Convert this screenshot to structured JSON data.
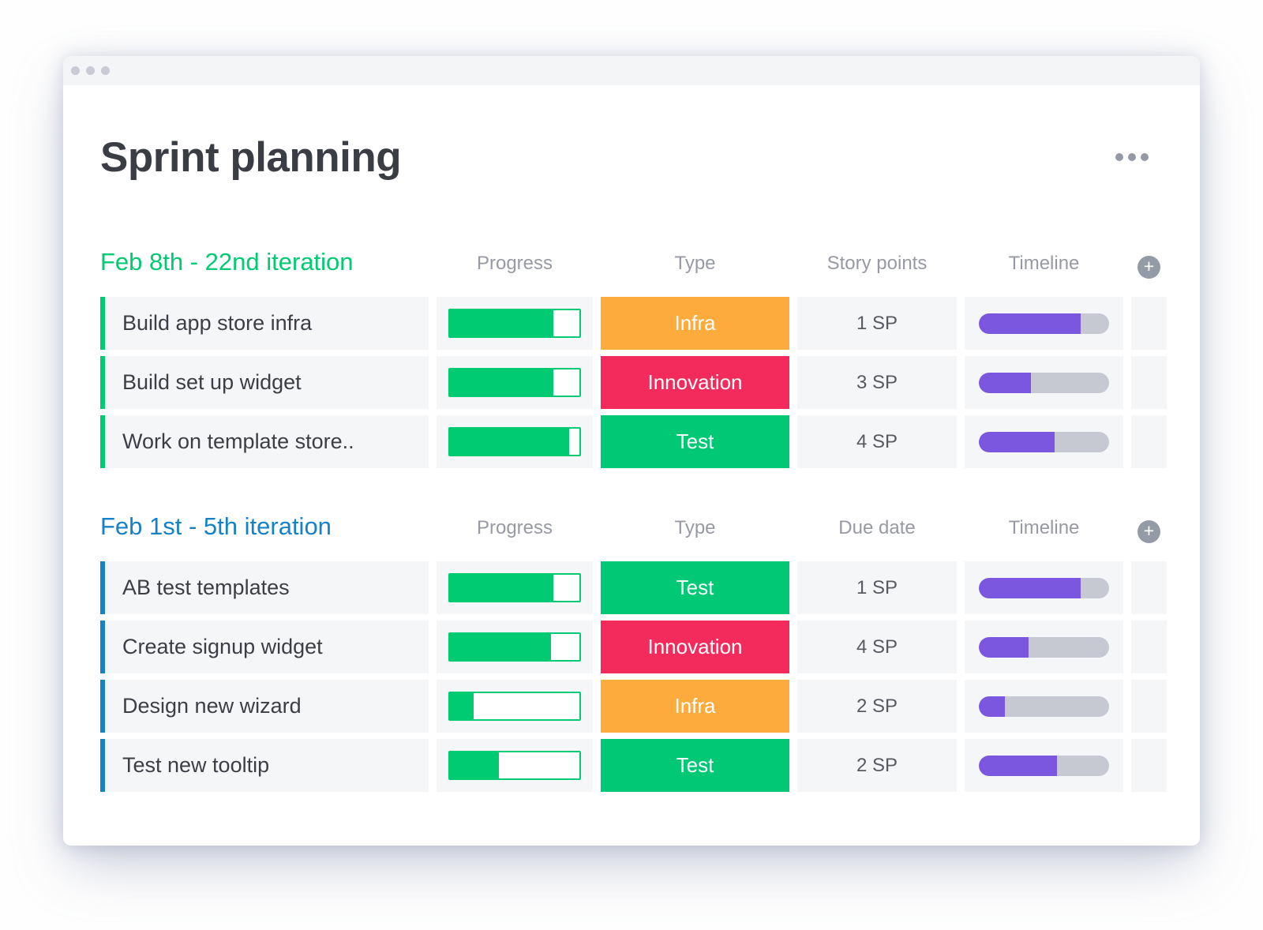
{
  "board": {
    "title": "Sprint planning",
    "menu_icon": "ellipsis-icon"
  },
  "icons": {
    "plus": "+",
    "window_controls": "three-dots"
  },
  "colors": {
    "progress_green": "#00ca72",
    "timeline_purple": "#7b57e0",
    "timeline_track": "#c6c8d2",
    "row_bg": "#f5f6f8",
    "titlebar_bg": "#f4f5f7",
    "window_dot": "#c8cad4",
    "menu_dot": "#9599a5",
    "plus_button": "#959aa7"
  },
  "types": {
    "Infra": "#fdab3d",
    "Innovation": "#f22b5c",
    "Test": "#00c875"
  },
  "groups": [
    {
      "title": "Feb 8th - 22nd iteration",
      "accent": "#00ca72",
      "columns": [
        "Progress",
        "Type",
        "Story points",
        "Timeline"
      ],
      "rows": [
        {
          "name": "Build app store infra",
          "progress_pct": 80,
          "type": "Infra",
          "points": "1 SP",
          "timeline_pct": 78
        },
        {
          "name": "Build set up widget",
          "progress_pct": 80,
          "type": "Innovation",
          "points": "3 SP",
          "timeline_pct": 40
        },
        {
          "name": "Work on template store..",
          "progress_pct": 92,
          "type": "Test",
          "points": "4 SP",
          "timeline_pct": 58
        }
      ]
    },
    {
      "title": "Feb 1st - 5th iteration",
      "accent": "#1582c8",
      "columns": [
        "Progress",
        "Type",
        "Due date",
        "Timeline"
      ],
      "rows": [
        {
          "name": "AB test templates",
          "progress_pct": 80,
          "type": "Test",
          "points": "1 SP",
          "timeline_pct": 78
        },
        {
          "name": "Create signup widget",
          "progress_pct": 78,
          "type": "Innovation",
          "points": "4 SP",
          "timeline_pct": 38
        },
        {
          "name": "Design new wizard",
          "progress_pct": 18,
          "type": "Infra",
          "points": "2 SP",
          "timeline_pct": 20
        },
        {
          "name": "Test new tooltip",
          "progress_pct": 38,
          "type": "Test",
          "points": "2 SP",
          "timeline_pct": 60
        }
      ]
    }
  ]
}
